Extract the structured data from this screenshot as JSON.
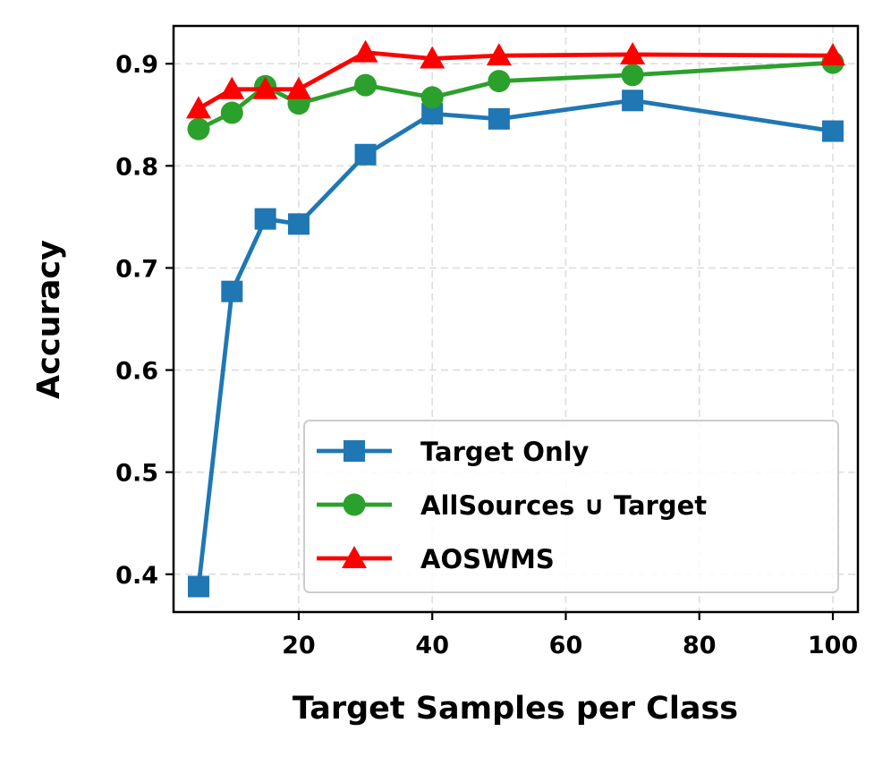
{
  "chart_data": {
    "type": "line",
    "xlabel": "Target Samples per Class",
    "ylabel": "Accuracy",
    "xlim": [
      1.25,
      103.75
    ],
    "ylim": [
      0.363,
      0.937
    ],
    "xticks": [
      20,
      40,
      60,
      80,
      100
    ],
    "yticks": [
      0.4,
      0.5,
      0.6,
      0.7,
      0.8,
      0.9
    ],
    "xtick_labels": [
      "20",
      "40",
      "60",
      "80",
      "100"
    ],
    "ytick_labels": [
      "0.4",
      "0.5",
      "0.6",
      "0.7",
      "0.8",
      "0.9"
    ],
    "x": [
      5,
      10,
      15,
      20,
      30,
      40,
      50,
      70,
      100
    ],
    "grid": true,
    "legend_position": "lower-right",
    "series": [
      {
        "name": "Target Only",
        "color": "#1f77b4",
        "marker": "square",
        "values": [
          0.388,
          0.677,
          0.748,
          0.743,
          0.811,
          0.851,
          0.846,
          0.864,
          0.834
        ]
      },
      {
        "name": "AllSources ∪ Target",
        "color": "#2ca02c",
        "marker": "circle",
        "values": [
          0.836,
          0.852,
          0.878,
          0.861,
          0.879,
          0.867,
          0.883,
          0.889,
          0.901
        ]
      },
      {
        "name": "AOSWMS",
        "color": "#ff0000",
        "marker": "triangle",
        "values": [
          0.856,
          0.875,
          0.875,
          0.875,
          0.911,
          0.905,
          0.908,
          0.909,
          0.908
        ]
      }
    ]
  }
}
